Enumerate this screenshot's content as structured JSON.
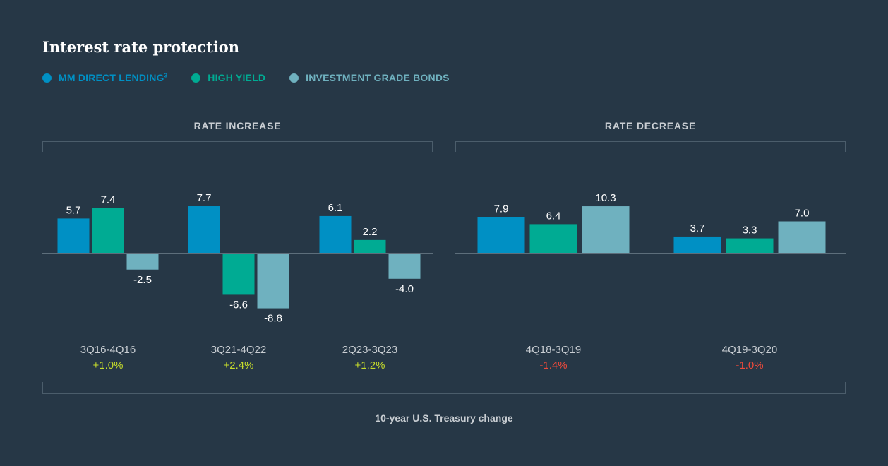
{
  "chart_data": {
    "type": "bar",
    "title": "Interest rate protection",
    "xlabel": "10-year U.S. Treasury change",
    "grid": false,
    "legend_position": "top-left",
    "series_meta": [
      {
        "name": "MM DIRECT LENDING",
        "sup": "3",
        "color": "#0090c4"
      },
      {
        "name": "HIGH YIELD",
        "color": "#00ab93"
      },
      {
        "name": "INVESTMENT GRADE BONDS",
        "color": "#6fb1bf"
      }
    ],
    "panels": [
      {
        "title": "RATE INCREASE",
        "categories": [
          "3Q16-4Q16",
          "3Q21-4Q22",
          "2Q23-3Q23"
        ],
        "treasury_change": [
          "+1.0%",
          "+2.4%",
          "+1.2%"
        ],
        "series": [
          {
            "name": "MM DIRECT LENDING",
            "values": [
              5.7,
              7.7,
              6.1
            ]
          },
          {
            "name": "HIGH YIELD",
            "values": [
              7.4,
              -6.6,
              2.2
            ]
          },
          {
            "name": "INVESTMENT GRADE BONDS",
            "values": [
              -2.5,
              -8.8,
              -4.0
            ]
          }
        ]
      },
      {
        "title": "RATE DECREASE",
        "categories": [
          "4Q18-3Q19",
          "4Q19-3Q20"
        ],
        "treasury_change": [
          "-1.4%",
          "-1.0%"
        ],
        "series": [
          {
            "name": "MM DIRECT LENDING",
            "values": [
              7.9,
              3.7
            ]
          },
          {
            "name": "HIGH YIELD",
            "values": [
              6.4,
              3.3
            ]
          },
          {
            "name": "INVESTMENT GRADE BONDS",
            "values": [
              10.3,
              7.0
            ]
          }
        ]
      }
    ]
  },
  "colors": {
    "positive_change": "#c6dc2c",
    "negative_change": "#ee4a3b",
    "background": "#263746"
  }
}
